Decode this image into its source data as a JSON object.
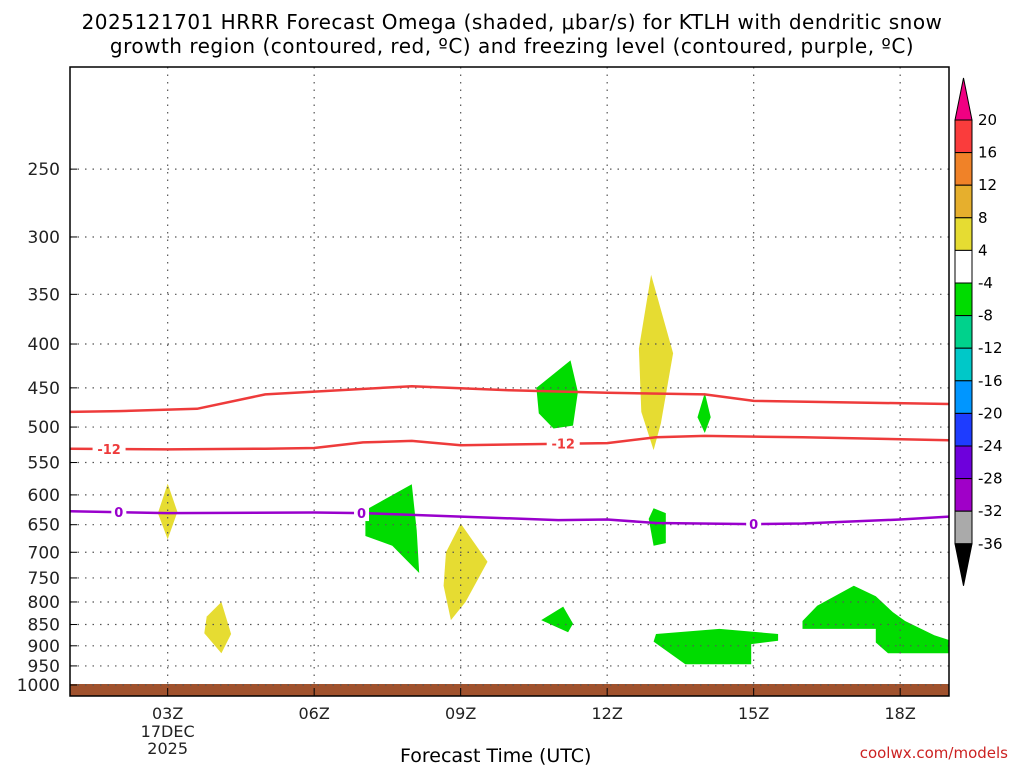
{
  "title_line1": "2025121701 HRRR Forecast Omega (shaded, μbar/s) for KTLH with dendritic snow",
  "title_line2": "growth region (contoured, red, ºC) and freezing level (contoured, purple, ºC)",
  "credit": "coolwx.com/models",
  "chart_data": {
    "type": "time-height cross section",
    "xlabel": "Forecast Time (UTC)",
    "x_axis": {
      "unit": "forecast hour",
      "range": [
        1,
        19
      ],
      "ticks": [
        {
          "hour": 3,
          "label": "03Z",
          "sub1": "17DEC",
          "sub2": "2025"
        },
        {
          "hour": 6,
          "label": "06Z"
        },
        {
          "hour": 9,
          "label": "09Z"
        },
        {
          "hour": 12,
          "label": "12Z"
        },
        {
          "hour": 15,
          "label": "15Z"
        },
        {
          "hour": 18,
          "label": "18Z"
        }
      ]
    },
    "y_axis": {
      "unit": "hPa",
      "scale": "log",
      "inverted": true,
      "range": [
        1030,
        190
      ],
      "ticks": [
        250,
        300,
        350,
        400,
        450,
        500,
        550,
        600,
        650,
        700,
        750,
        800,
        850,
        900,
        950,
        1000
      ]
    },
    "grid": true,
    "colorbar": {
      "position": "right",
      "levels": [
        {
          "color": "#aaaaaa",
          "label": "-36"
        },
        {
          "color": "#a000c8",
          "label": "-32"
        },
        {
          "color": "#6e00dc",
          "label": "-28"
        },
        {
          "color": "#1e3cff",
          "label": "-24"
        },
        {
          "color": "#0096ff",
          "label": "-20"
        },
        {
          "color": "#00c8c8",
          "label": "-16"
        },
        {
          "color": "#00d28c",
          "label": "-12"
        },
        {
          "color": "#00dc00",
          "label": "-8"
        },
        {
          "color": "#ffffff",
          "label": "-4"
        },
        {
          "color": "#e6dc32",
          "label": "4"
        },
        {
          "color": "#e6af2d",
          "label": "8"
        },
        {
          "color": "#f08228",
          "label": "12"
        },
        {
          "color": "#fa3c3c",
          "label": "16"
        },
        {
          "color": "#f00082",
          "label": "20"
        }
      ],
      "under_color": "#000000"
    },
    "contours": [
      {
        "name": "dgz-top",
        "label": "",
        "color": "#ee3b3b",
        "points": [
          [
            1,
            480
          ],
          [
            2,
            479
          ],
          [
            3.6,
            476
          ],
          [
            5,
            458
          ],
          [
            8,
            448
          ],
          [
            10,
            453
          ],
          [
            12,
            456
          ],
          [
            14,
            458
          ],
          [
            15,
            466
          ],
          [
            19,
            470
          ]
        ]
      },
      {
        "name": "dgz-bottom",
        "label": "-12",
        "color": "#ee3b3b",
        "labels_at": [
          1.8,
          11.1
        ],
        "points": [
          [
            1,
            530
          ],
          [
            3,
            531
          ],
          [
            5,
            530
          ],
          [
            6,
            529
          ],
          [
            7,
            521
          ],
          [
            8,
            519
          ],
          [
            9,
            525
          ],
          [
            12,
            522
          ],
          [
            13,
            514
          ],
          [
            14,
            512
          ],
          [
            16,
            514
          ],
          [
            19,
            518
          ]
        ]
      },
      {
        "name": "freezing-level",
        "label": "0",
        "color": "#9900cc",
        "labels_at": [
          2.0,
          6.97,
          15.0
        ],
        "points": [
          [
            1,
            627
          ],
          [
            3,
            630
          ],
          [
            6,
            629
          ],
          [
            7,
            630
          ],
          [
            9,
            636
          ],
          [
            11,
            642
          ],
          [
            12,
            641
          ],
          [
            13,
            647
          ],
          [
            15,
            649
          ],
          [
            16,
            648
          ],
          [
            18,
            641
          ],
          [
            19,
            636
          ]
        ]
      }
    ],
    "omega_areas": [
      {
        "level": "4",
        "color": "#e6dc32",
        "points": [
          [
            3.0,
            582
          ],
          [
            3.2,
            628
          ],
          [
            3.0,
            676
          ],
          [
            2.8,
            630
          ]
        ]
      },
      {
        "level": "4",
        "color": "#e6dc32",
        "points": [
          [
            4.1,
            800
          ],
          [
            4.3,
            872
          ],
          [
            4.1,
            918
          ],
          [
            3.75,
            870
          ],
          [
            3.8,
            832
          ]
        ]
      },
      {
        "level": "4",
        "color": "#e6dc32",
        "points": [
          [
            9.0,
            648
          ],
          [
            9.55,
            718
          ],
          [
            9.1,
            800
          ],
          [
            8.8,
            840
          ],
          [
            8.65,
            766
          ],
          [
            8.7,
            700
          ]
        ]
      },
      {
        "level": "4",
        "color": "#e6dc32",
        "points": [
          [
            12.9,
            332
          ],
          [
            13.35,
            410
          ],
          [
            13.1,
            495
          ],
          [
            12.95,
            532
          ],
          [
            12.7,
            480
          ],
          [
            12.65,
            405
          ]
        ]
      },
      {
        "level": "-8",
        "color": "#00dc00",
        "points": [
          [
            11.25,
            418
          ],
          [
            11.4,
            455
          ],
          [
            11.3,
            498
          ],
          [
            10.9,
            502
          ],
          [
            10.6,
            482
          ],
          [
            10.55,
            450
          ]
        ]
      },
      {
        "level": "-8",
        "color": "#00dc00",
        "points": [
          [
            14.0,
            456
          ],
          [
            14.12,
            487
          ],
          [
            14.0,
            508
          ],
          [
            13.85,
            487
          ]
        ]
      },
      {
        "level": "-8",
        "color": "#00dc00",
        "points": [
          [
            8.0,
            583
          ],
          [
            8.1,
            660
          ],
          [
            8.15,
            740
          ],
          [
            7.6,
            688
          ],
          [
            7.05,
            670
          ],
          [
            7.05,
            625
          ]
        ]
      },
      {
        "level": "-8",
        "color": "#00dc00",
        "points": [
          [
            12.95,
            622
          ],
          [
            13.2,
            630
          ],
          [
            13.2,
            683
          ],
          [
            12.95,
            688
          ],
          [
            12.85,
            640
          ]
        ]
      },
      {
        "level": "-8",
        "color": "#00dc00",
        "points": [
          [
            11.1,
            810
          ],
          [
            11.3,
            848
          ],
          [
            11.2,
            868
          ],
          [
            10.65,
            840
          ]
        ]
      },
      {
        "level": "-8",
        "color": "#00dc00",
        "points": [
          [
            13.0,
            872
          ],
          [
            14.3,
            860
          ],
          [
            15.5,
            872
          ],
          [
            15.5,
            888
          ],
          [
            14.95,
            896
          ],
          [
            14.95,
            946
          ],
          [
            13.6,
            946
          ],
          [
            12.95,
            890
          ]
        ]
      },
      {
        "level": "-8",
        "color": "#00dc00",
        "points": [
          [
            17.05,
            766
          ],
          [
            17.5,
            788
          ],
          [
            17.85,
            822
          ],
          [
            18.1,
            842
          ],
          [
            18.7,
            875
          ],
          [
            19,
            886
          ],
          [
            19,
            918
          ],
          [
            17.75,
            918
          ],
          [
            17.5,
            892
          ],
          [
            17.5,
            860
          ],
          [
            16.0,
            860
          ],
          [
            16.0,
            842
          ],
          [
            16.3,
            808
          ]
        ]
      }
    ]
  }
}
